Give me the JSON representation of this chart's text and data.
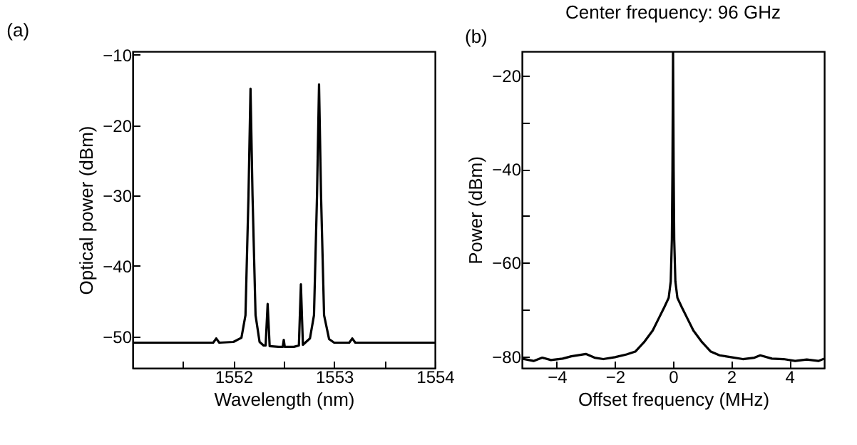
{
  "chart_data": [
    {
      "type": "line",
      "title": "(a)",
      "xlabel": "Wavelength (nm)",
      "ylabel": "Optical power (dBm)",
      "xlim": [
        1551,
        1554
      ],
      "xticks": [
        {
          "value": 1551.5,
          "label": null
        },
        1552,
        {
          "value": 1552.5,
          "label": null
        },
        1553,
        {
          "value": 1553.5,
          "label": null
        },
        1554
      ],
      "ylim": [
        -54.5,
        -9.5
      ],
      "yticks": [
        -50,
        -40,
        -30,
        -20,
        -10
      ],
      "grid": false,
      "series": [
        {
          "color": "#000000",
          "x": [
            1551.0,
            1551.5,
            1551.8,
            1551.83,
            1551.86,
            1552.0,
            1552.08,
            1552.12,
            1552.15,
            1552.17,
            1552.19,
            1552.22,
            1552.26,
            1552.3,
            1552.32,
            1552.34,
            1552.36,
            1552.45,
            1552.49,
            1552.5,
            1552.51,
            1552.6,
            1552.65,
            1552.67,
            1552.69,
            1552.76,
            1552.8,
            1552.83,
            1552.85,
            1552.87,
            1552.9,
            1552.95,
            1553.0,
            1553.15,
            1553.18,
            1553.21,
            1553.5,
            1554.0
          ],
          "values": [
            -50.9,
            -50.9,
            -50.9,
            -50.3,
            -50.9,
            -50.8,
            -50.2,
            -47,
            -30,
            -14.8,
            -30,
            -47,
            -50.8,
            -51.3,
            -51.3,
            -45.4,
            -51.4,
            -51.5,
            -51.5,
            -50.5,
            -51.5,
            -51.5,
            -51.3,
            -42.6,
            -51.2,
            -50.3,
            -47,
            -30,
            -14.2,
            -30,
            -47,
            -50.4,
            -50.9,
            -50.9,
            -50.3,
            -50.9,
            -50.9,
            -50.9
          ]
        }
      ]
    },
    {
      "type": "line",
      "title": "Center frequency: 96 GHz",
      "annotations": [
        "(b)"
      ],
      "xlabel": "Offset frequency (MHz)",
      "ylabel": "Power (dBm)",
      "xlim": [
        -5.2,
        5.2
      ],
      "xticks": [
        -4,
        -2,
        0,
        2,
        4
      ],
      "ylim": [
        -82.5,
        -14.8
      ],
      "yticks": [
        -80,
        {
          "value": -70,
          "label": null
        },
        -60,
        {
          "value": -50,
          "label": null
        },
        -40,
        {
          "value": -30,
          "label": null
        },
        -20
      ],
      "grid": false,
      "series": [
        {
          "color": "#000000",
          "x": [
            -5.2,
            -4.8,
            -4.5,
            -4.2,
            -3.8,
            -3.5,
            -3,
            -2.7,
            -2.4,
            -2,
            -1.6,
            -1.3,
            -1,
            -0.7,
            -0.5,
            -0.3,
            -0.15,
            -0.08,
            -0.04,
            -0.02,
            0,
            0.02,
            0.04,
            0.08,
            0.15,
            0.3,
            0.5,
            0.7,
            1,
            1.3,
            1.6,
            2,
            2.4,
            2.8,
            3,
            3.4,
            3.8,
            4.2,
            4.6,
            5,
            5.2
          ],
          "values": [
            -80.5,
            -81,
            -80.3,
            -80.8,
            -80.5,
            -80,
            -79.5,
            -80.3,
            -80.6,
            -80.2,
            -79.6,
            -79,
            -77,
            -74.5,
            -72,
            -69.5,
            -67.5,
            -64,
            -55,
            -40,
            -15,
            -40,
            -55,
            -64,
            -67.5,
            -69.5,
            -72,
            -74.5,
            -77,
            -79,
            -79.8,
            -80.2,
            -80.6,
            -80.3,
            -79.8,
            -80.5,
            -80.6,
            -81,
            -80.7,
            -81,
            -80.5
          ]
        }
      ]
    }
  ]
}
